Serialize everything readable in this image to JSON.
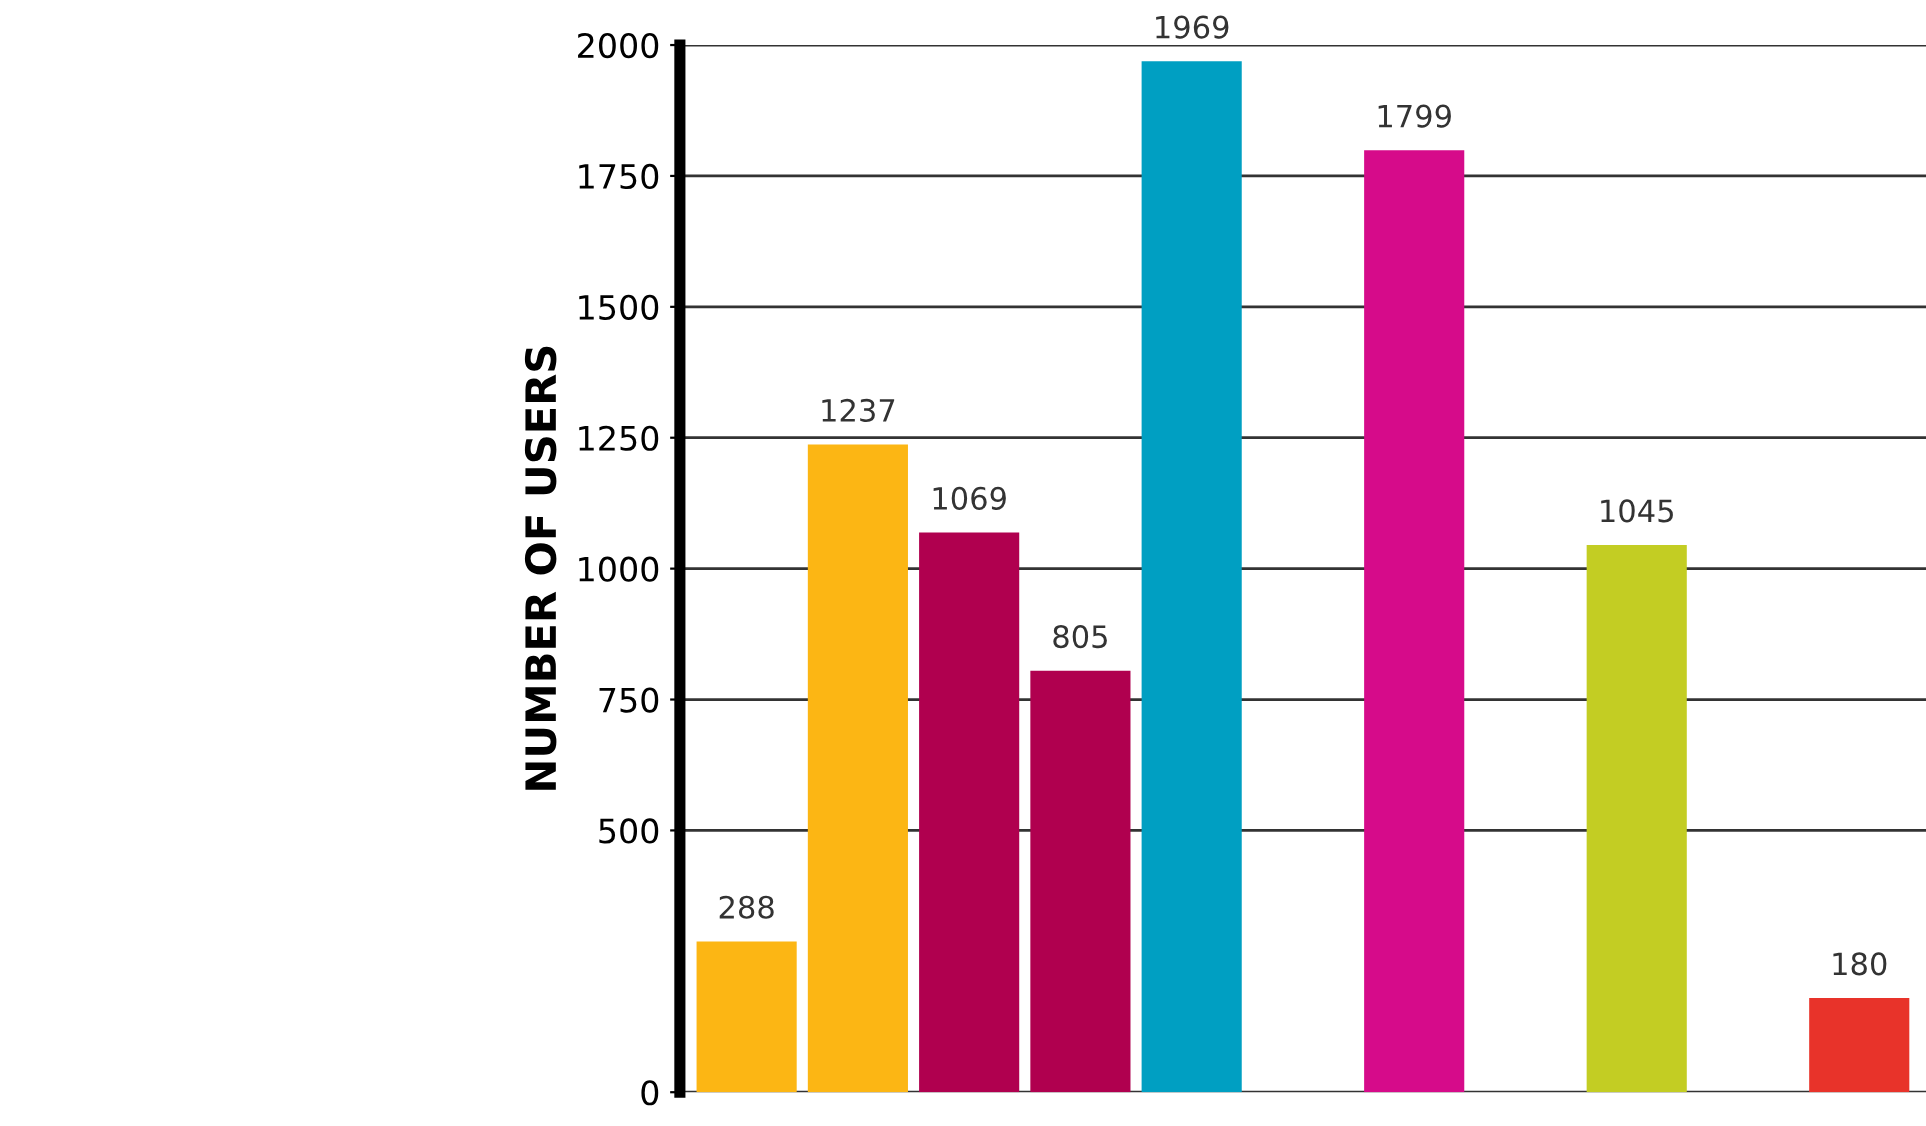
{
  "chart_data": {
    "type": "bar",
    "ylabel": "NUMBER OF USERS",
    "categories": [
      null,
      null,
      null,
      null,
      null,
      null,
      null,
      null,
      null,
      null,
      null
    ],
    "values": [
      288,
      1237,
      1069,
      805,
      1969,
      null,
      1799,
      null,
      1045,
      null,
      180
    ],
    "colors": [
      "#fcb614",
      "#fcb614",
      "#b0004f",
      "#b0004f",
      "#009fc2",
      "#009fc2",
      "#d60b8a",
      "#d60b8a",
      "#c3cd23",
      "#c3cd23",
      "#e8332a"
    ],
    "ylim": [
      0,
      2000
    ],
    "yticks": [
      0,
      500,
      750,
      1000,
      1250,
      1500,
      1750,
      2000
    ],
    "grid": "y",
    "data_labels": true,
    "tick_labels": "y"
  }
}
